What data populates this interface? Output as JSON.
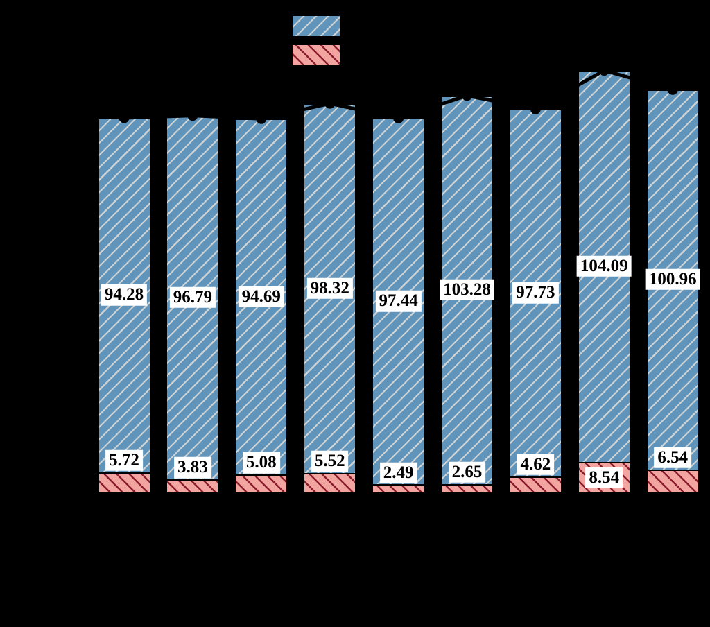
{
  "chart_data": {
    "type": "bar",
    "subtype": "stacked-bars-with-total-line-markers",
    "title": "",
    "xlabel": "",
    "ylabel": "",
    "background": "#000000",
    "grid": false,
    "n_bars": 9,
    "series": [
      {
        "name": "upper-blue-hatched",
        "values": [
          94.28,
          96.79,
          94.69,
          98.32,
          97.44,
          103.28,
          97.73,
          104.09,
          100.96
        ],
        "labels": [
          "94.28",
          "96.79",
          "94.69",
          "98.32",
          "97.44",
          "103.28",
          "97.73",
          "104.09",
          "100.96"
        ],
        "fill_color": "#6094ba",
        "hatch": "/",
        "hatch_color": "#cdd2d4",
        "edge_color": "#000000"
      },
      {
        "name": "lower-red-hatched",
        "values": [
          5.72,
          3.83,
          5.08,
          5.52,
          2.49,
          2.65,
          4.62,
          8.54,
          6.54
        ],
        "labels": [
          "5.72",
          "3.83",
          "5.08",
          "5.52",
          "2.49",
          "2.65",
          "4.62",
          "8.54",
          "6.54"
        ],
        "fill_color": "#f2a5a0",
        "hatch": "\\",
        "hatch_color": "#8c1e2d",
        "edge_color": "#000000"
      }
    ],
    "line": {
      "name": "total-line",
      "values": [
        100.0,
        100.62,
        99.77,
        103.84,
        99.93,
        105.93,
        102.35,
        112.63,
        107.5
      ],
      "color": "#000000",
      "marker": "circle",
      "marker_color": "#000000"
    },
    "value_label_style": {
      "text_color": "#000000",
      "background": "#ffffff",
      "font_weight": "bold"
    },
    "legend": {
      "position": "top-center",
      "swatches": [
        {
          "name": "upper-blue-hatched-swatch"
        },
        {
          "name": "lower-red-hatched-swatch"
        }
      ]
    }
  }
}
